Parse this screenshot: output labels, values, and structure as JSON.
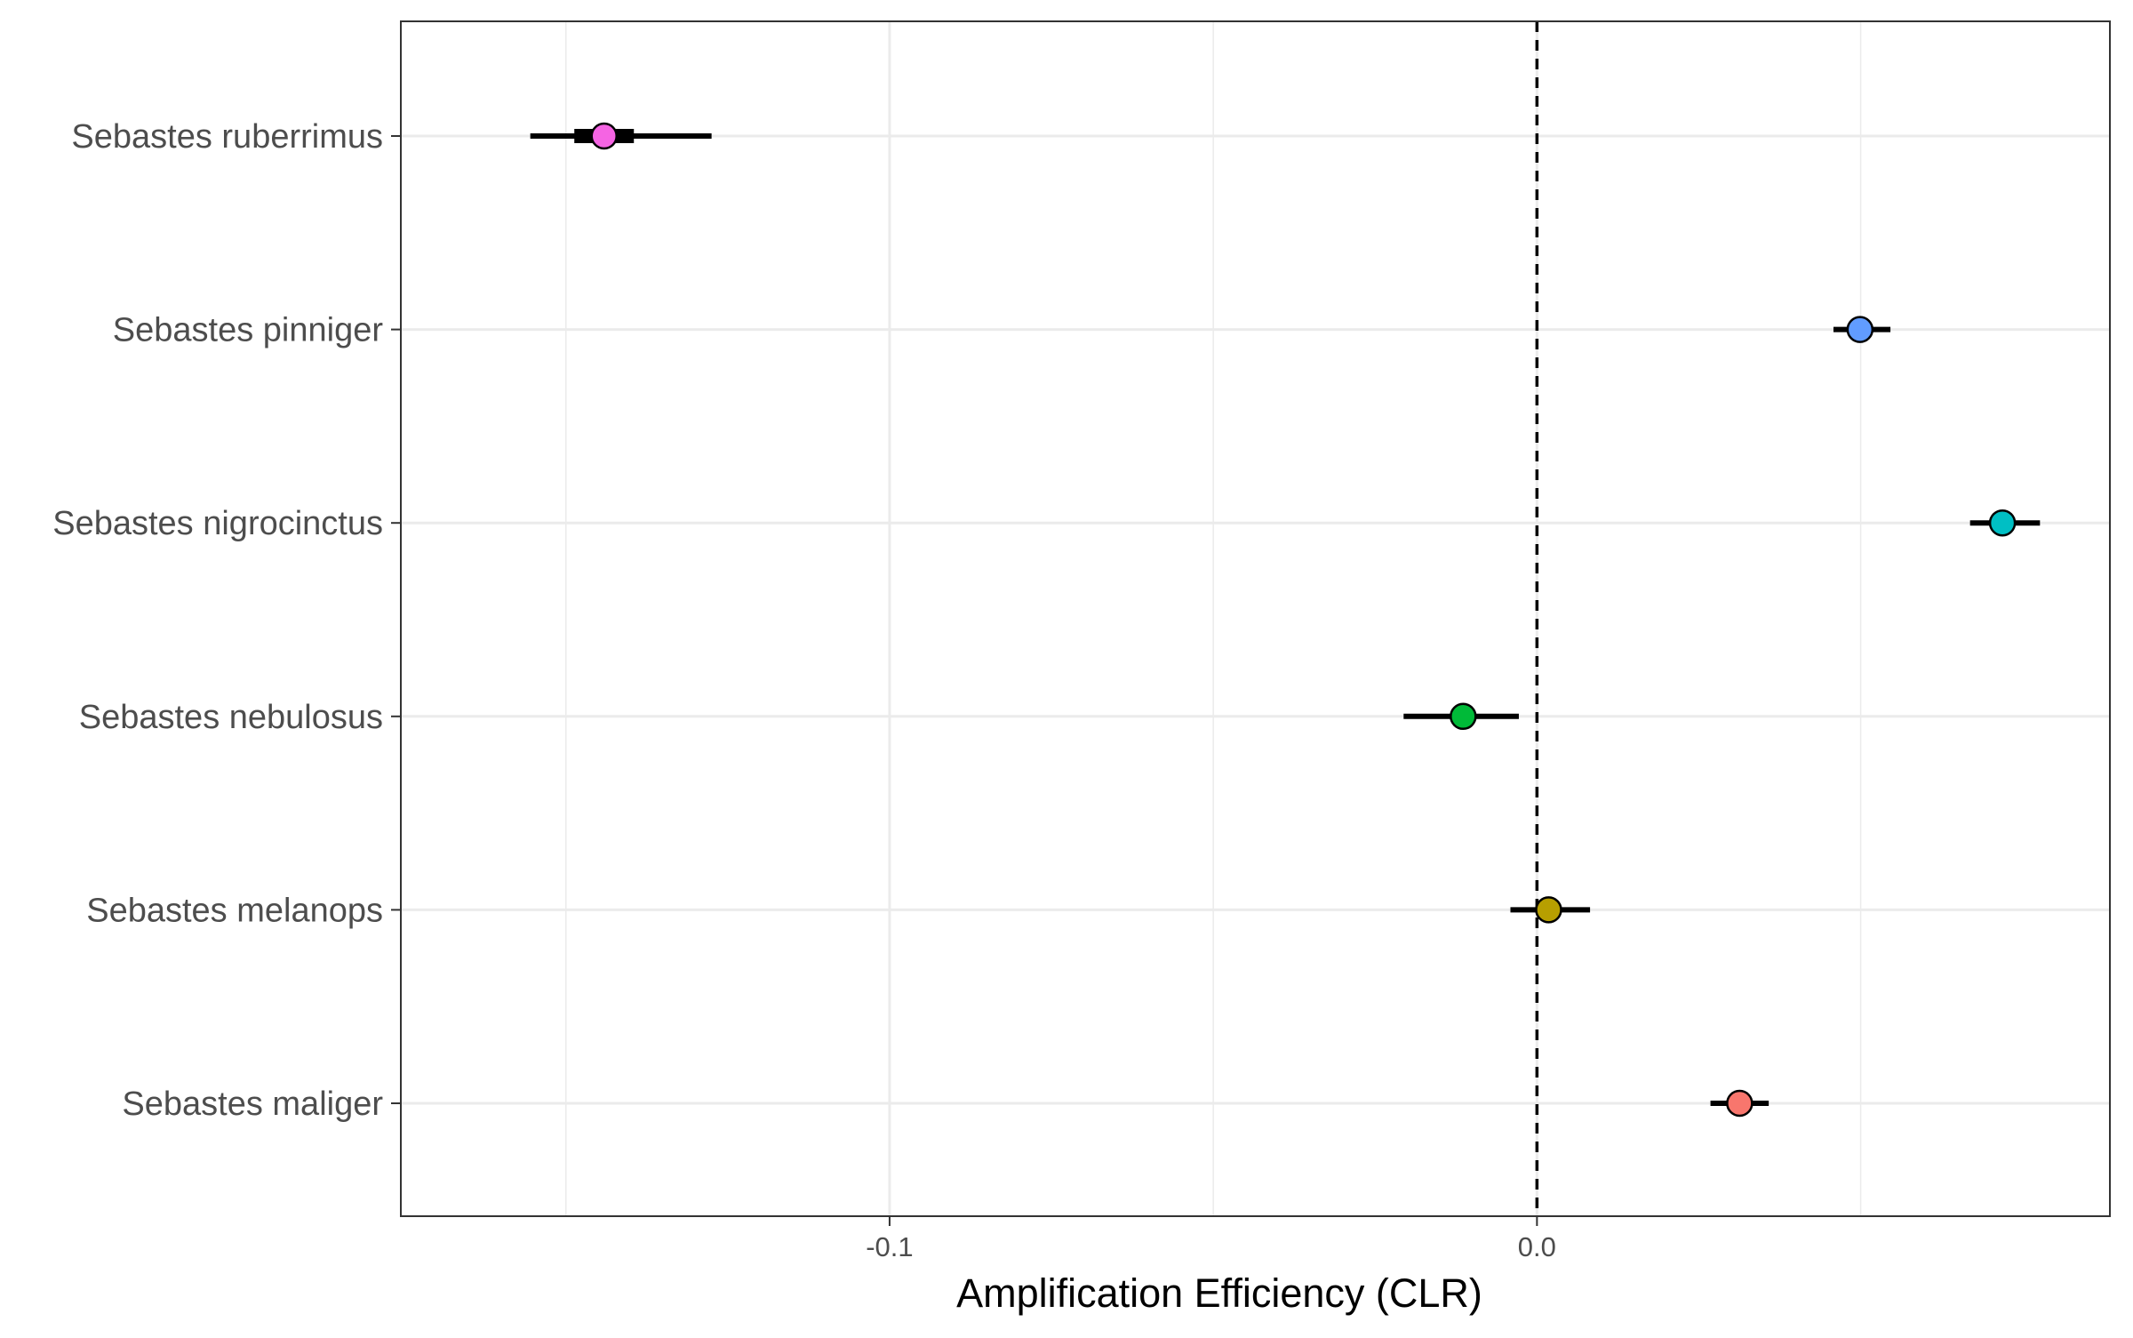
{
  "chart_data": {
    "type": "scatter",
    "title": "",
    "xlabel": "Amplification Efficiency (CLR)",
    "ylabel": "",
    "xlim": [
      -0.1755,
      0.0885
    ],
    "x_ticks": [
      -0.1,
      0.0
    ],
    "x_tick_labels": [
      "-0.1",
      "0.0"
    ],
    "reference_line": 0.0,
    "grid": true,
    "legend": "none",
    "categories": [
      "Sebastes ruberrimus",
      "Sebastes pinniger",
      "Sebastes nigrocinctus",
      "Sebastes nebulosus",
      "Sebastes melanops",
      "Sebastes maliger"
    ],
    "points": [
      {
        "species": "Sebastes ruberrimus",
        "x": -0.1441,
        "ci_low": -0.1555,
        "ci_high": -0.1275,
        "inner_low": -0.1487,
        "inner_high": -0.1395,
        "color": "#F564E3"
      },
      {
        "species": "Sebastes pinniger",
        "x": 0.0499,
        "ci_low": 0.0458,
        "ci_high": 0.0546,
        "color": "#619CFF"
      },
      {
        "species": "Sebastes nigrocinctus",
        "x": 0.0719,
        "ci_low": 0.0669,
        "ci_high": 0.0777,
        "color": "#00BFC4"
      },
      {
        "species": "Sebastes nebulosus",
        "x": -0.0114,
        "ci_low": -0.0206,
        "ci_high": -0.0028,
        "color": "#00BA38"
      },
      {
        "species": "Sebastes melanops",
        "x": 0.0018,
        "ci_low": -0.0041,
        "ci_high": 0.0082,
        "color": "#B79F00"
      },
      {
        "species": "Sebastes maliger",
        "x": 0.0313,
        "ci_low": 0.0268,
        "ci_high": 0.0358,
        "color": "#F8766D"
      }
    ]
  }
}
